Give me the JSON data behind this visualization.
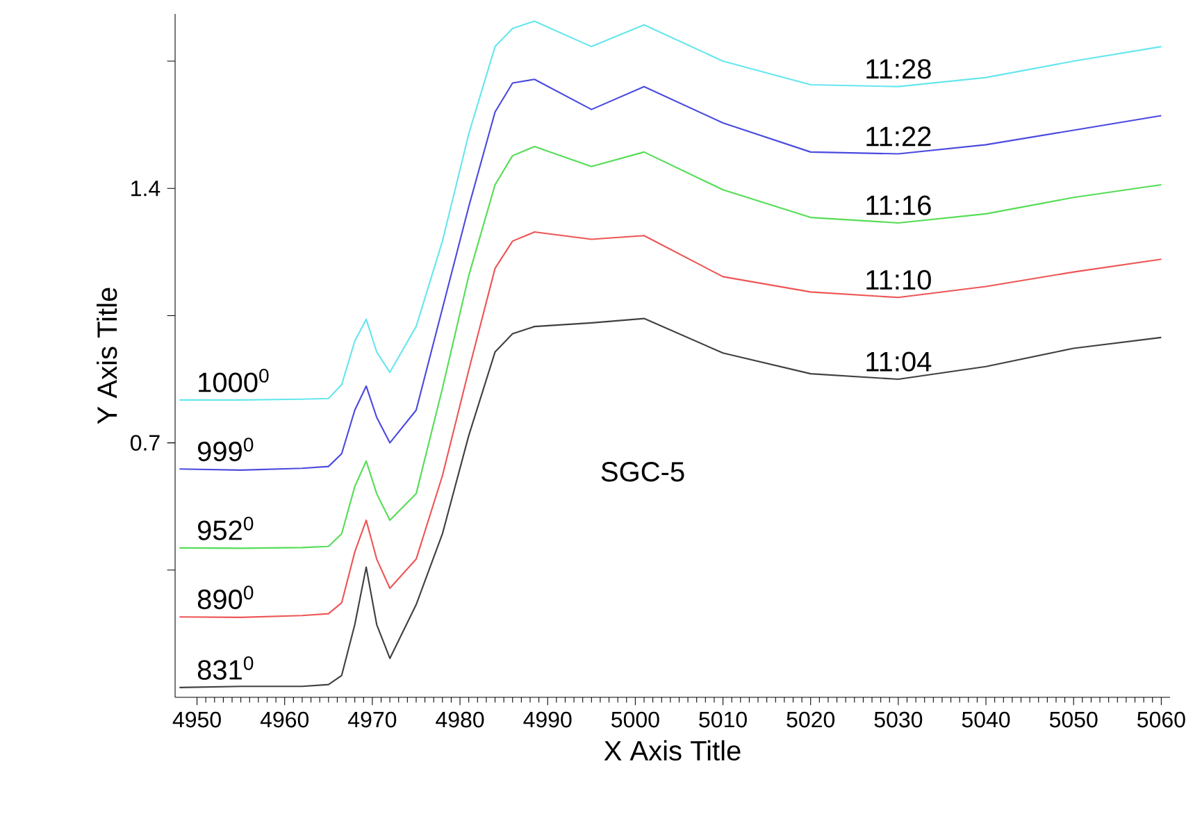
{
  "chart_data": {
    "type": "line",
    "xlabel": "X Axis Title",
    "ylabel": "Y Axis Title",
    "xlim": [
      4947.5,
      5061
    ],
    "ylim": [
      0,
      1.88
    ],
    "xticks": [
      4950,
      4960,
      4970,
      4980,
      4990,
      5000,
      5010,
      5020,
      5030,
      5040,
      5050,
      5060
    ],
    "yticks": [
      {
        "value": 0.35,
        "label": null
      },
      0.7,
      {
        "value": 1.05,
        "label": null
      },
      1.4,
      {
        "value": 1.75,
        "label": null
      }
    ],
    "grid": false,
    "legend": false,
    "marker": "none",
    "line_style": "solid",
    "x": [
      4948,
      4955,
      4962,
      4965,
      4966.5,
      4968,
      4969.3,
      4970.5,
      4972,
      4975,
      4978,
      4981,
      4984,
      4986,
      4988.5,
      4995,
      5001,
      5010,
      5020,
      5030,
      5040,
      5050,
      5060
    ],
    "series": [
      {
        "name": "831$^{0}$",
        "color": "#404040",
        "values": [
          0.027,
          0.03,
          0.03,
          0.035,
          0.06,
          0.2,
          0.358,
          0.2,
          0.107,
          0.255,
          0.45,
          0.72,
          0.95,
          1.0,
          1.02,
          1.03,
          1.042,
          0.947,
          0.89,
          0.875,
          0.91,
          0.96,
          0.99
        ]
      },
      {
        "name": "890$^{0}$",
        "color": "#ee5555",
        "values": [
          0.221,
          0.22,
          0.225,
          0.23,
          0.26,
          0.4,
          0.487,
          0.38,
          0.3,
          0.38,
          0.61,
          0.9,
          1.18,
          1.255,
          1.28,
          1.26,
          1.27,
          1.157,
          1.115,
          1.1,
          1.13,
          1.17,
          1.205
        ]
      },
      {
        "name": "952$^{0}$",
        "color": "#55dd55",
        "values": [
          0.411,
          0.41,
          0.412,
          0.415,
          0.45,
          0.58,
          0.65,
          0.56,
          0.487,
          0.56,
          0.85,
          1.16,
          1.41,
          1.49,
          1.515,
          1.46,
          1.5,
          1.396,
          1.32,
          1.305,
          1.33,
          1.375,
          1.41
        ]
      },
      {
        "name": "999$^{0}$",
        "color": "#4a4ae0",
        "values": [
          0.628,
          0.625,
          0.63,
          0.635,
          0.67,
          0.79,
          0.856,
          0.77,
          0.7,
          0.79,
          1.07,
          1.35,
          1.61,
          1.69,
          1.7,
          1.617,
          1.68,
          1.58,
          1.5,
          1.495,
          1.52,
          1.56,
          1.6
        ]
      },
      {
        "name": "1000$^{0}$",
        "color": "#66e6ee",
        "values": [
          0.818,
          0.818,
          0.82,
          0.822,
          0.86,
          0.98,
          1.04,
          0.95,
          0.894,
          1.02,
          1.255,
          1.55,
          1.79,
          1.84,
          1.86,
          1.79,
          1.85,
          1.75,
          1.685,
          1.68,
          1.705,
          1.75,
          1.79
        ]
      }
    ],
    "annotations": [
      "11:04",
      "11:10",
      "11:16",
      "11:22",
      "11:28",
      "SGC-5"
    ]
  }
}
